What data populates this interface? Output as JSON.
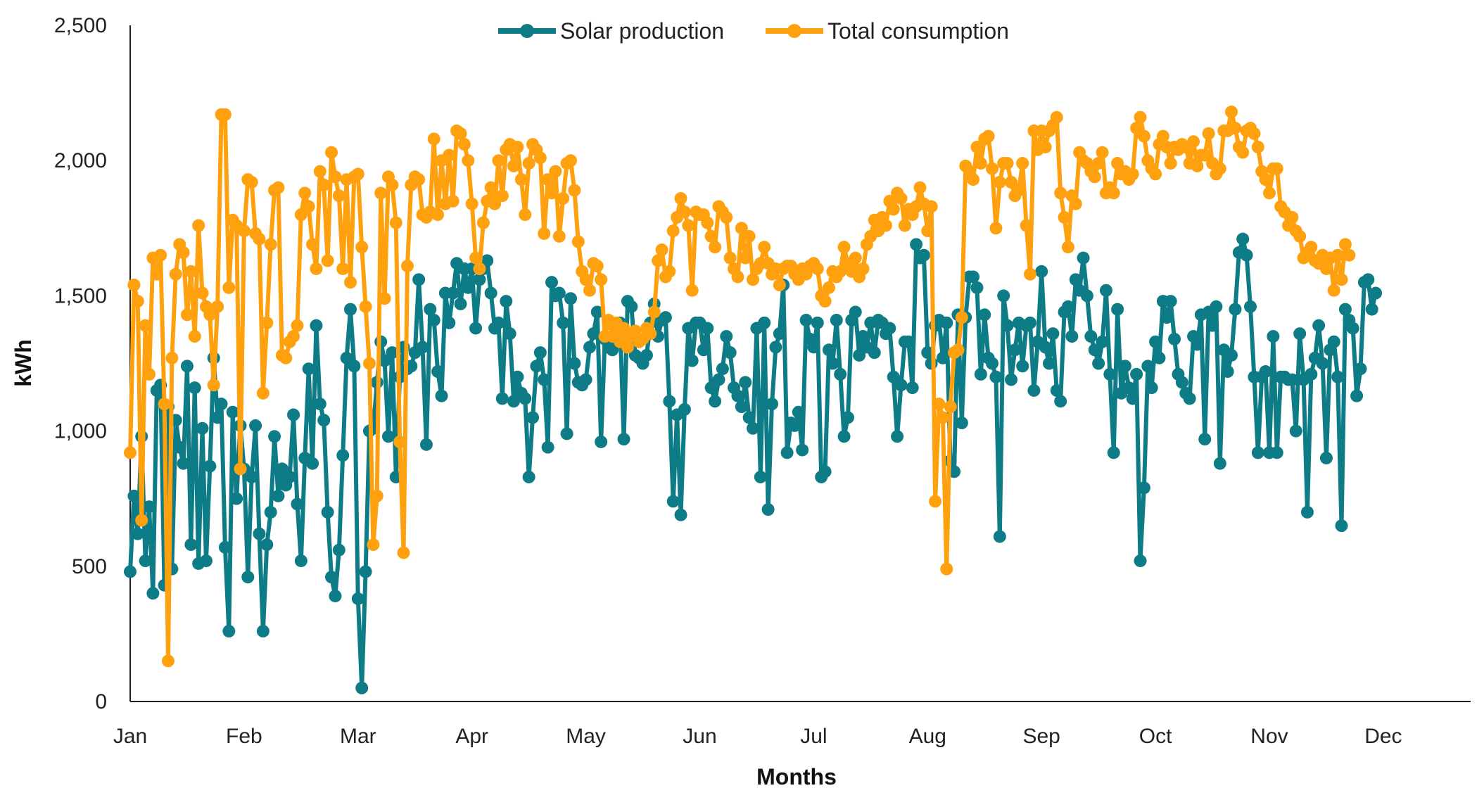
{
  "chart_data": {
    "type": "line",
    "title": "",
    "xlabel": "Months",
    "ylabel": "kWh",
    "ylim": [
      0,
      2500
    ],
    "yticks": [
      0,
      500,
      1000,
      1500,
      2000,
      2500
    ],
    "ytick_labels": [
      "0",
      "500",
      "1,000",
      "1,500",
      "2,000",
      "2,500"
    ],
    "xlim": [
      0,
      353
    ],
    "months": [
      {
        "label": "Jan",
        "x": 0
      },
      {
        "label": "Feb",
        "x": 30
      },
      {
        "label": "Mar",
        "x": 60
      },
      {
        "label": "Apr",
        "x": 90
      },
      {
        "label": "May",
        "x": 120
      },
      {
        "label": "Jun",
        "x": 150
      },
      {
        "label": "Jul",
        "x": 180
      },
      {
        "label": "Aug",
        "x": 210
      },
      {
        "label": "Sep",
        "x": 240
      },
      {
        "label": "Oct",
        "x": 270
      },
      {
        "label": "Nov",
        "x": 300
      },
      {
        "label": "Dec",
        "x": 330
      }
    ],
    "legend_position": "top-center",
    "series": [
      {
        "name": "Solar production",
        "color": "#0e7c86",
        "values": [
          480,
          760,
          620,
          980,
          520,
          720,
          400,
          1150,
          1170,
          430,
          1090,
          490,
          1040,
          940,
          880,
          1240,
          580,
          1160,
          510,
          1010,
          520,
          870,
          1270,
          1050,
          1100,
          570,
          260,
          1070,
          750,
          1020,
          860,
          460,
          830,
          1020,
          620,
          260,
          580,
          700,
          980,
          760,
          860,
          800,
          830,
          1060,
          730,
          520,
          900,
          1230,
          880,
          1390,
          1100,
          1040,
          700,
          460,
          390,
          560,
          910,
          1270,
          1450,
          1240,
          380,
          50,
          480,
          1000,
          1010,
          1180,
          1330,
          1260,
          980,
          1290,
          830,
          1200,
          1310,
          1230,
          1240,
          1290,
          1560,
          1310,
          950,
          1450,
          1410,
          1220,
          1130,
          1510,
          1400,
          1510,
          1620,
          1470,
          1600,
          1530,
          1600,
          1380,
          1560,
          1600,
          1630,
          1510,
          1380,
          1400,
          1120,
          1480,
          1360,
          1110,
          1200,
          1140,
          1120,
          830,
          1050,
          1240,
          1290,
          1190,
          940,
          1550,
          1500,
          1510,
          1400,
          990,
          1490,
          1250,
          1180,
          1170,
          1190,
          1310,
          1360,
          1440,
          960,
          1340,
          1310,
          1300,
          1350,
          1400,
          970,
          1480,
          1460,
          1280,
          1270,
          1250,
          1280,
          1400,
          1470,
          1350,
          1410,
          1420,
          1110,
          740,
          1060,
          690,
          1080,
          1380,
          1260,
          1400,
          1400,
          1300,
          1380,
          1160,
          1110,
          1190,
          1230,
          1350,
          1290,
          1160,
          1130,
          1090,
          1180,
          1050,
          1010,
          1380,
          830,
          1400,
          710,
          1100,
          1310,
          1360,
          1540,
          920,
          1030,
          1020,
          1070,
          930,
          1410,
          1340,
          1310,
          1400,
          830,
          850,
          1300,
          1250,
          1410,
          1210,
          980,
          1050,
          1410,
          1440,
          1280,
          1350,
          1310,
          1400,
          1290,
          1410,
          1400,
          1360,
          1380,
          1200,
          980,
          1170,
          1330,
          1330,
          1160,
          1690,
          1640,
          1650,
          1290,
          1250,
          1390,
          1410,
          1270,
          1400,
          890,
          850,
          1430,
          1030,
          1420,
          1570,
          1570,
          1530,
          1210,
          1430,
          1270,
          1250,
          1200,
          610,
          1500,
          1390,
          1190,
          1300,
          1400,
          1240,
          1390,
          1400,
          1150,
          1330,
          1590,
          1310,
          1250,
          1360,
          1150,
          1110,
          1440,
          1460,
          1350,
          1560,
          1520,
          1640,
          1500,
          1350,
          1300,
          1250,
          1330,
          1520,
          1210,
          920,
          1450,
          1140,
          1240,
          1160,
          1120,
          1210,
          520,
          790,
          1240,
          1160,
          1330,
          1270,
          1480,
          1420,
          1480,
          1340,
          1210,
          1180,
          1140,
          1120,
          1350,
          1320,
          1430,
          970,
          1440,
          1390,
          1460,
          880,
          1300,
          1220,
          1280,
          1450,
          1660,
          1710,
          1650,
          1460,
          1200,
          920,
          1200,
          1220,
          920,
          1350,
          920,
          1200,
          1200,
          1190,
          1190,
          1000,
          1360,
          1190,
          700,
          1210,
          1270,
          1390,
          1250,
          900,
          1300,
          1330,
          1200,
          650,
          1450,
          1410,
          1380,
          1130,
          1230,
          1550,
          1560,
          1450,
          1510
        ]
      },
      {
        "name": "Total consumption",
        "color": "#ffa00f",
        "values": [
          920,
          1540,
          1480,
          670,
          1390,
          1210,
          1640,
          1580,
          1650,
          1100,
          150,
          1270,
          1580,
          1690,
          1660,
          1430,
          1590,
          1350,
          1760,
          1510,
          1460,
          1430,
          1170,
          1460,
          2170,
          2170,
          1530,
          1780,
          1760,
          860,
          1740,
          1930,
          1920,
          1730,
          1710,
          1140,
          1400,
          1690,
          1890,
          1900,
          1280,
          1270,
          1330,
          1350,
          1390,
          1800,
          1880,
          1830,
          1690,
          1600,
          1960,
          1910,
          1630,
          2030,
          1940,
          1870,
          1600,
          1930,
          1550,
          1940,
          1950,
          1680,
          1460,
          1250,
          580,
          760,
          1880,
          1490,
          1940,
          1910,
          1770,
          960,
          550,
          1610,
          1910,
          1940,
          1930,
          1800,
          1790,
          1810,
          2080,
          1800,
          2000,
          1840,
          2020,
          1850,
          2110,
          2100,
          2060,
          2000,
          1840,
          1640,
          1600,
          1770,
          1850,
          1900,
          1840,
          2000,
          1870,
          2040,
          2060,
          1980,
          2050,
          1930,
          1800,
          1990,
          2060,
          2040,
          2010,
          1730,
          1930,
          1880,
          1960,
          1720,
          1860,
          1990,
          2000,
          1890,
          1700,
          1590,
          1560,
          1520,
          1620,
          1610,
          1560,
          1350,
          1410,
          1350,
          1400,
          1330,
          1380,
          1310,
          1350,
          1370,
          1330,
          1340,
          1380,
          1360,
          1440,
          1630,
          1670,
          1570,
          1590,
          1740,
          1790,
          1860,
          1810,
          1760,
          1520,
          1810,
          1800,
          1800,
          1770,
          1720,
          1680,
          1830,
          1810,
          1790,
          1640,
          1600,
          1570,
          1750,
          1640,
          1720,
          1560,
          1600,
          1620,
          1680,
          1620,
          1580,
          1600,
          1540,
          1600,
          1610,
          1610,
          1580,
          1560,
          1600,
          1580,
          1610,
          1620,
          1600,
          1500,
          1480,
          1530,
          1590,
          1570,
          1590,
          1680,
          1620,
          1590,
          1640,
          1570,
          1600,
          1690,
          1720,
          1780,
          1740,
          1790,
          1760,
          1850,
          1820,
          1880,
          1860,
          1760,
          1820,
          1800,
          1830,
          1900,
          1840,
          1740,
          1830,
          740,
          1100,
          1050,
          490,
          1090,
          1290,
          1300,
          1420,
          1980,
          1960,
          1930,
          2050,
          1990,
          2080,
          2090,
          1970,
          1750,
          1920,
          1990,
          1990,
          1920,
          1870,
          1890,
          1990,
          1760,
          1580,
          2110,
          2040,
          2110,
          2050,
          2110,
          2130,
          2160,
          1880,
          1790,
          1680,
          1870,
          1840,
          2030,
          2000,
          1990,
          1960,
          1940,
          1990,
          2030,
          1880,
          1900,
          1880,
          1990,
          1950,
          1960,
          1930,
          1950,
          2120,
          2160,
          2090,
          2000,
          1970,
          1950,
          2060,
          2090,
          2050,
          1990,
          2050,
          2040,
          2060,
          2050,
          1990,
          2070,
          1980,
          2020,
          2020,
          2100,
          1990,
          1950,
          1970,
          2110,
          2110,
          2180,
          2120,
          2050,
          2030,
          2110,
          2120,
          2100,
          2050,
          1960,
          1930,
          1880,
          1970,
          1970,
          1830,
          1810,
          1760,
          1790,
          1740,
          1720,
          1640,
          1660,
          1680,
          1630,
          1620,
          1650,
          1600,
          1640,
          1520,
          1650,
          1560,
          1690,
          1650
        ]
      }
    ]
  }
}
